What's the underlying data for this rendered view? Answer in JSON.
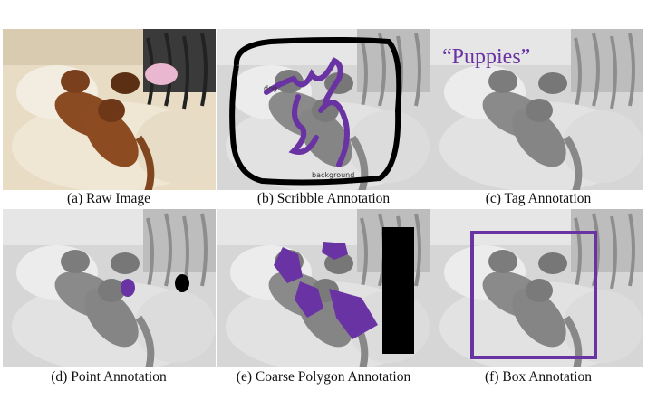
{
  "figure": {
    "panels": [
      {
        "id": "a",
        "caption": "(a) Raw Image"
      },
      {
        "id": "b",
        "caption": "(b) Scribble Annotation",
        "labels": {
          "dog": "dog",
          "background": "background"
        }
      },
      {
        "id": "c",
        "caption": "(c) Tag Annotation",
        "tag_text": "“Puppies”"
      },
      {
        "id": "d",
        "caption": "(d) Point Annotation"
      },
      {
        "id": "e",
        "caption": "(e) Coarse Polygon Annotation"
      },
      {
        "id": "f",
        "caption": "(f) Box Annotation"
      }
    ],
    "colors": {
      "annotation_purple": "#6a33a3",
      "background_black": "#000000",
      "gray_photo": "#cfcfcf"
    }
  }
}
